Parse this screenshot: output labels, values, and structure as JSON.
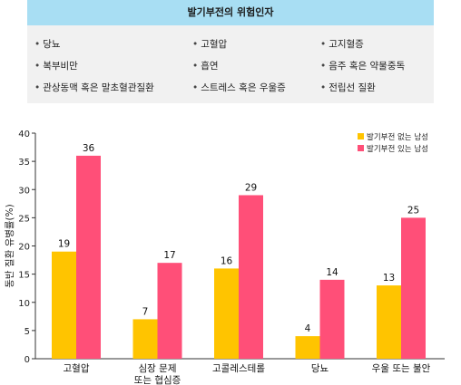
{
  "risk_box": {
    "title": "발기부전의 위험인자",
    "factors": [
      "당뇨",
      "고혈압",
      "고지혈증",
      "복부비만",
      "흡연",
      "음주 혹은 약물중독",
      "관상동맥 혹은 말초혈관질환",
      "스트레스 혹은 우울증",
      "전립선 질환"
    ]
  },
  "chart_data": {
    "type": "bar",
    "title": "",
    "xlabel": "",
    "ylabel": "동반 질환 유병률(%)",
    "ylim": [
      0,
      40
    ],
    "yticks": [
      0,
      5,
      10,
      15,
      20,
      25,
      30,
      35,
      40
    ],
    "grid": false,
    "legend_position": "top-right",
    "categories": [
      "고혈압",
      "심장 문제\n또는 협심증",
      "고콜레스테롤",
      "당뇨",
      "우울 또는 불안"
    ],
    "series": [
      {
        "name": "발기부전 없는 남성",
        "color": "#ffc400",
        "values": [
          19,
          7,
          16,
          4,
          13
        ]
      },
      {
        "name": "발기부전 있는 남성",
        "color": "#ff4f78",
        "values": [
          36,
          17,
          29,
          14,
          25
        ]
      }
    ]
  }
}
